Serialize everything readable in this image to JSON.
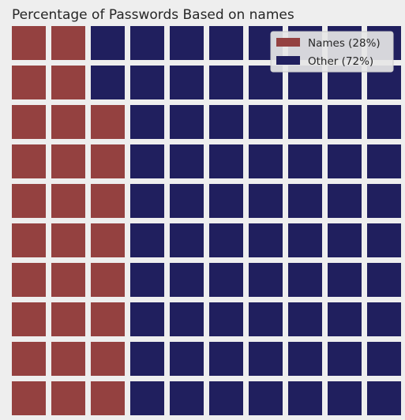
{
  "chart_data": {
    "type": "waffle",
    "title": "Percentage of Passwords Based on names",
    "rows": 10,
    "columns": 10,
    "series": [
      {
        "name": "Names (28%)",
        "value": 28,
        "color": "#944140"
      },
      {
        "name": "Other (72%)",
        "value": 72,
        "color": "#201f5e"
      }
    ],
    "fill_order": "column-major, bottom-to-top starting at left column",
    "legend_position": "top-right",
    "background_color": "#eeeeee"
  }
}
